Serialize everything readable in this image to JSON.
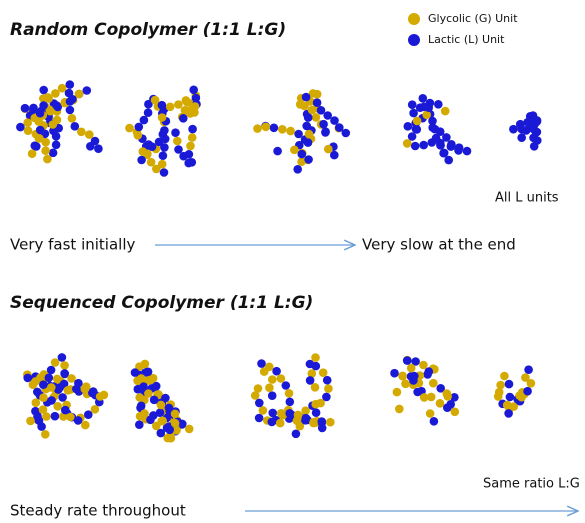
{
  "legend": [
    {
      "label": "Glycolic (G) Unit",
      "color": "#d4aa00"
    },
    {
      "label": "Lactic (L) Unit",
      "color": "#1a1ad6"
    }
  ],
  "top": {
    "title": "Random Copolymer (1:1 L:G)",
    "note": "All L units",
    "start_label": "Very fast initially",
    "end_label": "Very slow at the end"
  },
  "bottom": {
    "title": "Sequenced Copolymer (1:1 L:G)",
    "note": "Same ratio L:G",
    "rate_label": "Steady rate throughout"
  }
}
